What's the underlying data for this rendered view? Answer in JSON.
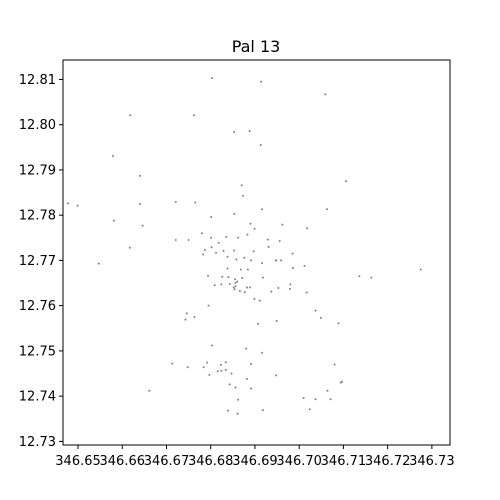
{
  "chart_data": {
    "type": "scatter",
    "title": "Pal 13",
    "xlabel": "",
    "ylabel": "",
    "xlim": [
      346.6466,
      346.7341
    ],
    "ylim": [
      12.7292,
      12.8143
    ],
    "xticks": [
      346.65,
      346.66,
      346.67,
      346.68,
      346.69,
      346.7,
      346.71,
      346.72,
      346.73
    ],
    "xtick_labels": [
      "346.65",
      "346.66",
      "346.67",
      "346.68",
      "346.69",
      "346.70",
      "346.71",
      "346.72",
      "346.73"
    ],
    "yticks": [
      12.73,
      12.74,
      12.75,
      12.76,
      12.77,
      12.78,
      12.79,
      12.8,
      12.81
    ],
    "ytick_labels": [
      "12.73",
      "12.74",
      "12.75",
      "12.76",
      "12.77",
      "12.78",
      "12.79",
      "12.80",
      "12.81"
    ],
    "grid": false,
    "marker_color": "#808080",
    "series": [
      {
        "x": [
          346.6803,
          346.6914,
          346.6762,
          346.6618,
          346.7059,
          346.6579,
          346.664,
          346.664,
          346.6477,
          346.6499,
          346.6581,
          346.6617,
          346.6547,
          346.6646,
          346.6721,
          346.6765,
          346.6801,
          346.6721,
          346.675,
          346.678,
          346.6801,
          346.6835,
          346.6853,
          346.6862,
          346.6883,
          346.6899,
          346.6929,
          346.6956,
          346.6985,
          346.7018,
          346.7063,
          346.7106,
          346.7136,
          346.7163,
          346.6962,
          346.689,
          346.6853,
          346.6818,
          346.6802,
          346.6787,
          346.6812,
          346.6838,
          346.6858,
          346.6876,
          346.6897,
          346.6931,
          346.6947,
          346.6948,
          346.6916,
          346.6891,
          346.6884,
          346.6868,
          346.6838,
          346.6826,
          346.6824,
          346.6852,
          346.6856,
          346.6866,
          346.6889,
          346.6918,
          346.6854,
          346.6809,
          346.6795,
          346.6763,
          346.6746,
          346.6743,
          346.684,
          346.6856,
          346.6877,
          346.6899,
          346.6911,
          346.6937,
          346.6953,
          346.698,
          346.7017,
          346.7049,
          346.7089,
          346.701,
          346.6948,
          346.6891,
          346.6847,
          346.6839,
          346.6861,
          346.6834,
          346.6834,
          346.688,
          346.6907,
          346.6949,
          346.6979,
          346.7037,
          346.708,
          346.7097,
          346.6916,
          346.6891,
          346.6843,
          346.6824,
          346.6784,
          346.6748,
          346.6713,
          346.6661,
          346.6792,
          346.6803,
          346.6823,
          346.6797,
          346.6816,
          346.6856,
          346.6862,
          346.6882,
          346.6918,
          346.7071,
          346.7064,
          346.7094,
          346.7037,
          346.7024,
          346.6853,
          346.6888,
          346.6913,
          346.687,
          346.6873,
          346.6916,
          346.6959,
          346.6986,
          346.7012,
          346.6829,
          346.6783,
          346.6794,
          346.6855,
          346.686,
          346.6871,
          346.6882,
          346.6843,
          346.7275
        ],
        "y": [
          12.8103,
          12.8095,
          12.8021,
          12.8021,
          12.8067,
          12.7931,
          12.7887,
          12.7825,
          12.7826,
          12.7821,
          12.7788,
          12.7728,
          12.7693,
          12.7777,
          12.7829,
          12.7828,
          12.7796,
          12.7745,
          12.7745,
          12.776,
          12.775,
          12.7752,
          12.7722,
          12.775,
          12.7757,
          12.777,
          12.7746,
          12.7743,
          12.7715,
          12.7771,
          12.7813,
          12.7875,
          12.7665,
          12.7662,
          12.7779,
          12.7781,
          12.7803,
          12.7739,
          12.7729,
          12.7723,
          12.7717,
          12.7708,
          12.7702,
          12.7706,
          12.772,
          12.773,
          12.77,
          12.77,
          12.7694,
          12.77,
          12.768,
          12.768,
          12.7682,
          12.7664,
          12.7647,
          12.764,
          12.7643,
          12.7632,
          12.764,
          12.7662,
          12.7636,
          12.7645,
          12.76,
          12.7575,
          12.7583,
          12.7569,
          12.7663,
          12.765,
          12.763,
          12.7615,
          12.7611,
          12.7631,
          12.7639,
          12.7647,
          12.7629,
          12.7573,
          12.7561,
          12.7396,
          12.7446,
          12.7417,
          12.745,
          12.7368,
          12.7361,
          12.7475,
          12.7458,
          12.7505,
          12.756,
          12.7566,
          12.7637,
          12.7589,
          12.747,
          12.7432,
          12.7496,
          12.7471,
          12.7426,
          12.7456,
          12.7464,
          12.7464,
          12.7472,
          12.7412,
          12.7474,
          12.7512,
          12.7469,
          12.7447,
          12.7455,
          12.7419,
          12.7392,
          12.7438,
          12.7369,
          12.7393,
          12.7412,
          12.743,
          12.7393,
          12.7371,
          12.7984,
          12.7986,
          12.7955,
          12.7866,
          12.7843,
          12.7813,
          12.77,
          12.7683,
          12.7688,
          12.7721,
          12.7713,
          12.7666,
          12.7658,
          12.7653,
          12.7661,
          12.764,
          12.7648,
          12.768
        ]
      }
    ]
  }
}
